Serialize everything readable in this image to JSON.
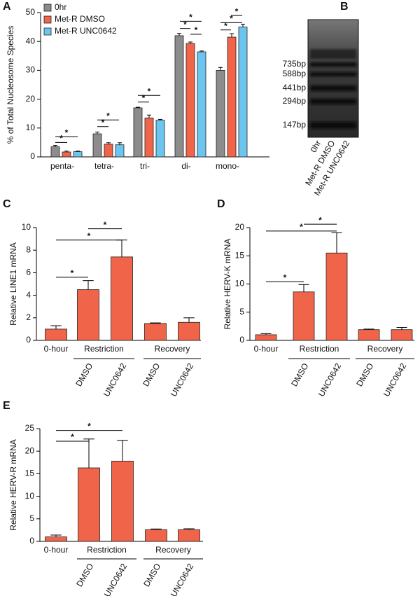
{
  "chart_data": [
    {
      "type": "bar",
      "panel": "A",
      "ylabel": "% of Total Nucleosome Species",
      "categories": [
        "penta-",
        "tetra-",
        "tri-",
        "di-",
        "mono-"
      ],
      "series": [
        {
          "name": "0hr",
          "color": "#8c8c8c",
          "values": [
            3.5,
            8.0,
            17.0,
            42.0,
            30.0
          ],
          "errors": [
            0.5,
            0.6,
            0.2,
            0.8,
            1.0
          ]
        },
        {
          "name": "Met-R DMSO",
          "color": "#f0654a",
          "values": [
            1.7,
            4.4,
            13.5,
            39.3,
            41.5
          ],
          "errors": [
            0.3,
            0.5,
            1.0,
            0.5,
            1.2
          ]
        },
        {
          "name": "Met-R UNC0642",
          "color": "#6cc5ef",
          "values": [
            1.8,
            4.2,
            12.7,
            36.4,
            45.0
          ],
          "errors": [
            0.2,
            0.7,
            0.3,
            0.3,
            1.0
          ]
        }
      ],
      "ylim": [
        0,
        50
      ],
      "yticks": [
        0,
        10,
        20,
        30,
        40,
        50
      ],
      "annotations": [
        "*",
        "*",
        "*",
        "*",
        "*",
        "*",
        "*",
        "*",
        "*",
        "*",
        "*",
        "*"
      ]
    },
    {
      "type": "bar",
      "panel": "C",
      "ylabel": "Relative LINE1 mRNA",
      "categories": [
        "0-hour",
        "DMSO",
        "UNC0642",
        "DMSO",
        "UNC0642"
      ],
      "groups": [
        "Restriction",
        "Recovery"
      ],
      "color": "#f0654a",
      "values": [
        1.0,
        4.5,
        7.4,
        1.5,
        1.6
      ],
      "errors": [
        0.3,
        0.8,
        1.5,
        0.05,
        0.4
      ],
      "ylim": [
        0,
        10
      ],
      "yticks": [
        0,
        2,
        4,
        6,
        8,
        10
      ],
      "annotations": [
        "*",
        "*",
        "*"
      ]
    },
    {
      "type": "bar",
      "panel": "D",
      "ylabel": "Relative HERV-K mRNA",
      "categories": [
        "0-hour",
        "DMSO",
        "UNC0642",
        "DMSO",
        "UNC0642"
      ],
      "groups": [
        "Restriction",
        "Recovery"
      ],
      "color": "#f0654a",
      "values": [
        1.0,
        8.6,
        15.5,
        1.9,
        1.9
      ],
      "errors": [
        0.2,
        1.3,
        3.6,
        0.1,
        0.4
      ],
      "ylim": [
        0,
        20
      ],
      "yticks": [
        0,
        5,
        10,
        15,
        20
      ],
      "annotations": [
        "*",
        "*",
        "*"
      ]
    },
    {
      "type": "bar",
      "panel": "E",
      "ylabel": "Relative HERV-R mRNA",
      "categories": [
        "0-hour",
        "DMSO",
        "UNC0642",
        "DMSO",
        "UNC0642"
      ],
      "groups": [
        "Restriction",
        "Recovery"
      ],
      "color": "#f0654a",
      "values": [
        1.0,
        16.3,
        17.8,
        2.6,
        2.6
      ],
      "errors": [
        0.4,
        6.4,
        4.6,
        0.15,
        0.2
      ],
      "ylim": [
        0,
        25
      ],
      "yticks": [
        0,
        5,
        10,
        15,
        20,
        25
      ],
      "annotations": [
        "*",
        "*"
      ]
    }
  ],
  "gel": {
    "panel": "B",
    "markers": [
      "735bp",
      "588bp",
      "441bp",
      "294bp",
      "147bp"
    ],
    "lanes": [
      "0hr",
      "Met-R DMSO",
      "Met-R UNC0642"
    ]
  }
}
